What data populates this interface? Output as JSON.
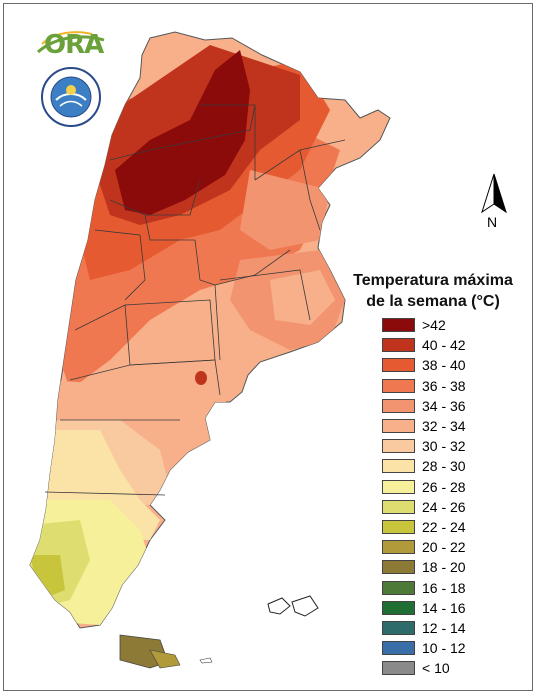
{
  "logo": {
    "text": "ORA"
  },
  "north_arrow": {
    "label": "N"
  },
  "legend": {
    "title_line1": "Temperatura máxima",
    "title_line2": "de la semana (°C)",
    "items": [
      {
        "label": ">42",
        "color": "#8b0a0a"
      },
      {
        "label": "40 - 42",
        "color": "#c0341e"
      },
      {
        "label": "38 - 40",
        "color": "#e65a32"
      },
      {
        "label": "36 - 38",
        "color": "#f07850"
      },
      {
        "label": "34 - 36",
        "color": "#f39470"
      },
      {
        "label": "32 - 34",
        "color": "#f7b08a"
      },
      {
        "label": "30 - 32",
        "color": "#f9c9a0"
      },
      {
        "label": "28 - 30",
        "color": "#fbe3a8"
      },
      {
        "label": "26 - 28",
        "color": "#f6f09a"
      },
      {
        "label": "24 - 26",
        "color": "#dede70"
      },
      {
        "label": "22 - 24",
        "color": "#c8c43c"
      },
      {
        "label": "20 - 22",
        "color": "#b09a3a"
      },
      {
        "label": "18 - 20",
        "color": "#8c7a36"
      },
      {
        "label": "16 - 18",
        "color": "#4e7a38"
      },
      {
        "label": "14 - 16",
        "color": "#1f6e34"
      },
      {
        "label": "12 - 14",
        "color": "#2e6c6c"
      },
      {
        "label": "10 - 12",
        "color": "#3a6ea8"
      },
      {
        "label": "< 10",
        "color": "#8a8a8a"
      }
    ]
  }
}
